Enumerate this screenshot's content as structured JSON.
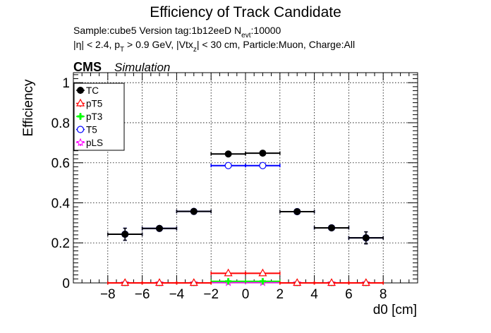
{
  "chart_data": {
    "type": "scatter",
    "title": "Efficiency of Track Candidate",
    "subtitle_line1_prefix": "Sample:cube5   Version tag:1b12eeD  N",
    "subtitle_line1_sub": "evt",
    "subtitle_line1_suffix": ":10000",
    "subtitle_line2_a": "|η| < 2.4, p",
    "subtitle_line2_sub1": "T",
    "subtitle_line2_b": " > 0.9 GeV, |Vtx",
    "subtitle_line2_sub2": "z",
    "subtitle_line2_c": "| < 30 cm, Particle:Muon, Charge:All",
    "cms_label": "CMS",
    "cms_sub": "Simulation",
    "xlabel": "d0 [cm]",
    "ylabel": "Efficiency",
    "xlim": [
      -10,
      10
    ],
    "ylim": [
      0,
      1.05
    ],
    "x_ticks": [
      -8,
      -6,
      -4,
      -2,
      0,
      2,
      4,
      6,
      8
    ],
    "x_tick_labels": [
      "−8",
      "−6",
      "−4",
      "−2",
      "0",
      "2",
      "4",
      "6",
      "8"
    ],
    "y_ticks": [
      0,
      0.2,
      0.4,
      0.6,
      0.8,
      1
    ],
    "y_tick_labels": [
      "0",
      "0.2",
      "0.4",
      "0.6",
      "0.8",
      "1"
    ],
    "grid": true,
    "legend_position": "top-left",
    "series": [
      {
        "name": "TC",
        "color": "#000000",
        "marker": "filled-circle",
        "points": [
          {
            "x": -7,
            "xerr": 1,
            "y": 0.243,
            "yerr": 0.03
          },
          {
            "x": -5,
            "xerr": 1,
            "y": 0.272,
            "yerr": 0.005
          },
          {
            "x": -3,
            "xerr": 1,
            "y": 0.357,
            "yerr": 0.005
          },
          {
            "x": -1,
            "xerr": 1,
            "y": 0.644,
            "yerr": 0.004
          },
          {
            "x": 1,
            "xerr": 1,
            "y": 0.648,
            "yerr": 0.004
          },
          {
            "x": 3,
            "xerr": 1,
            "y": 0.356,
            "yerr": 0.005
          },
          {
            "x": 5,
            "xerr": 1,
            "y": 0.275,
            "yerr": 0.005
          },
          {
            "x": 7,
            "xerr": 1,
            "y": 0.225,
            "yerr": 0.03
          }
        ]
      },
      {
        "name": "pT5",
        "color": "#ff0000",
        "marker": "open-triangle",
        "points": [
          {
            "x": -7,
            "xerr": 1,
            "y": 0.0,
            "yerr": 0
          },
          {
            "x": -5,
            "xerr": 1,
            "y": 0.0,
            "yerr": 0
          },
          {
            "x": -3,
            "xerr": 1,
            "y": 0.0,
            "yerr": 0
          },
          {
            "x": -1,
            "xerr": 1,
            "y": 0.048,
            "yerr": 0.002
          },
          {
            "x": 1,
            "xerr": 1,
            "y": 0.048,
            "yerr": 0.002
          },
          {
            "x": 3,
            "xerr": 1,
            "y": 0.0,
            "yerr": 0
          },
          {
            "x": 5,
            "xerr": 1,
            "y": 0.0,
            "yerr": 0
          },
          {
            "x": 7,
            "xerr": 1,
            "y": 0.0,
            "yerr": 0
          }
        ]
      },
      {
        "name": "pT3",
        "color": "#00ff00",
        "marker": "cross",
        "points": [
          {
            "x": -7,
            "xerr": 1,
            "y": 0.0,
            "yerr": 0
          },
          {
            "x": -5,
            "xerr": 1,
            "y": 0.0,
            "yerr": 0
          },
          {
            "x": -3,
            "xerr": 1,
            "y": 0.0,
            "yerr": 0
          },
          {
            "x": -1,
            "xerr": 1,
            "y": 0.008,
            "yerr": 0.001
          },
          {
            "x": 1,
            "xerr": 1,
            "y": 0.008,
            "yerr": 0.001
          },
          {
            "x": 3,
            "xerr": 1,
            "y": 0.0,
            "yerr": 0
          },
          {
            "x": 5,
            "xerr": 1,
            "y": 0.0,
            "yerr": 0
          },
          {
            "x": 7,
            "xerr": 1,
            "y": 0.0,
            "yerr": 0
          }
        ]
      },
      {
        "name": "T5",
        "color": "#0000ff",
        "marker": "open-circle",
        "points": [
          {
            "x": -7,
            "xerr": 1,
            "y": 0.243,
            "yerr": 0.03
          },
          {
            "x": -5,
            "xerr": 1,
            "y": 0.272,
            "yerr": 0.005
          },
          {
            "x": -3,
            "xerr": 1,
            "y": 0.357,
            "yerr": 0.005
          },
          {
            "x": -1,
            "xerr": 1,
            "y": 0.586,
            "yerr": 0.004
          },
          {
            "x": 1,
            "xerr": 1,
            "y": 0.586,
            "yerr": 0.004
          },
          {
            "x": 3,
            "xerr": 1,
            "y": 0.356,
            "yerr": 0.005
          },
          {
            "x": 5,
            "xerr": 1,
            "y": 0.275,
            "yerr": 0.005
          },
          {
            "x": 7,
            "xerr": 1,
            "y": 0.225,
            "yerr": 0.03
          }
        ]
      },
      {
        "name": "pLS",
        "color": "#ff00ff",
        "marker": "open-star",
        "points": [
          {
            "x": -7,
            "xerr": 1,
            "y": 0.0,
            "yerr": 0
          },
          {
            "x": -5,
            "xerr": 1,
            "y": 0.0,
            "yerr": 0
          },
          {
            "x": -3,
            "xerr": 1,
            "y": 0.0,
            "yerr": 0
          },
          {
            "x": -1,
            "xerr": 1,
            "y": 0.002,
            "yerr": 0.001
          },
          {
            "x": 1,
            "xerr": 1,
            "y": 0.002,
            "yerr": 0.001
          },
          {
            "x": 3,
            "xerr": 1,
            "y": 0.0,
            "yerr": 0
          },
          {
            "x": 5,
            "xerr": 1,
            "y": 0.0,
            "yerr": 0
          },
          {
            "x": 7,
            "xerr": 1,
            "y": 0.0,
            "yerr": 0
          }
        ]
      }
    ]
  }
}
